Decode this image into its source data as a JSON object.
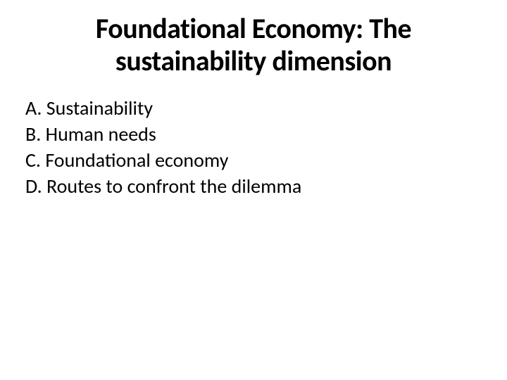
{
  "slide": {
    "title": "Foundational Economy: The sustainability dimension",
    "items": [
      "A. Sustainability",
      "B. Human needs",
      "C. Foundational economy",
      "D. Routes to confront the dilemma"
    ],
    "background_color": "#ffffff",
    "title_color": "#000000",
    "title_fontsize": 40,
    "title_fontweight": 700,
    "item_color": "#000000",
    "item_fontsize": 28,
    "item_fontweight": 400
  }
}
